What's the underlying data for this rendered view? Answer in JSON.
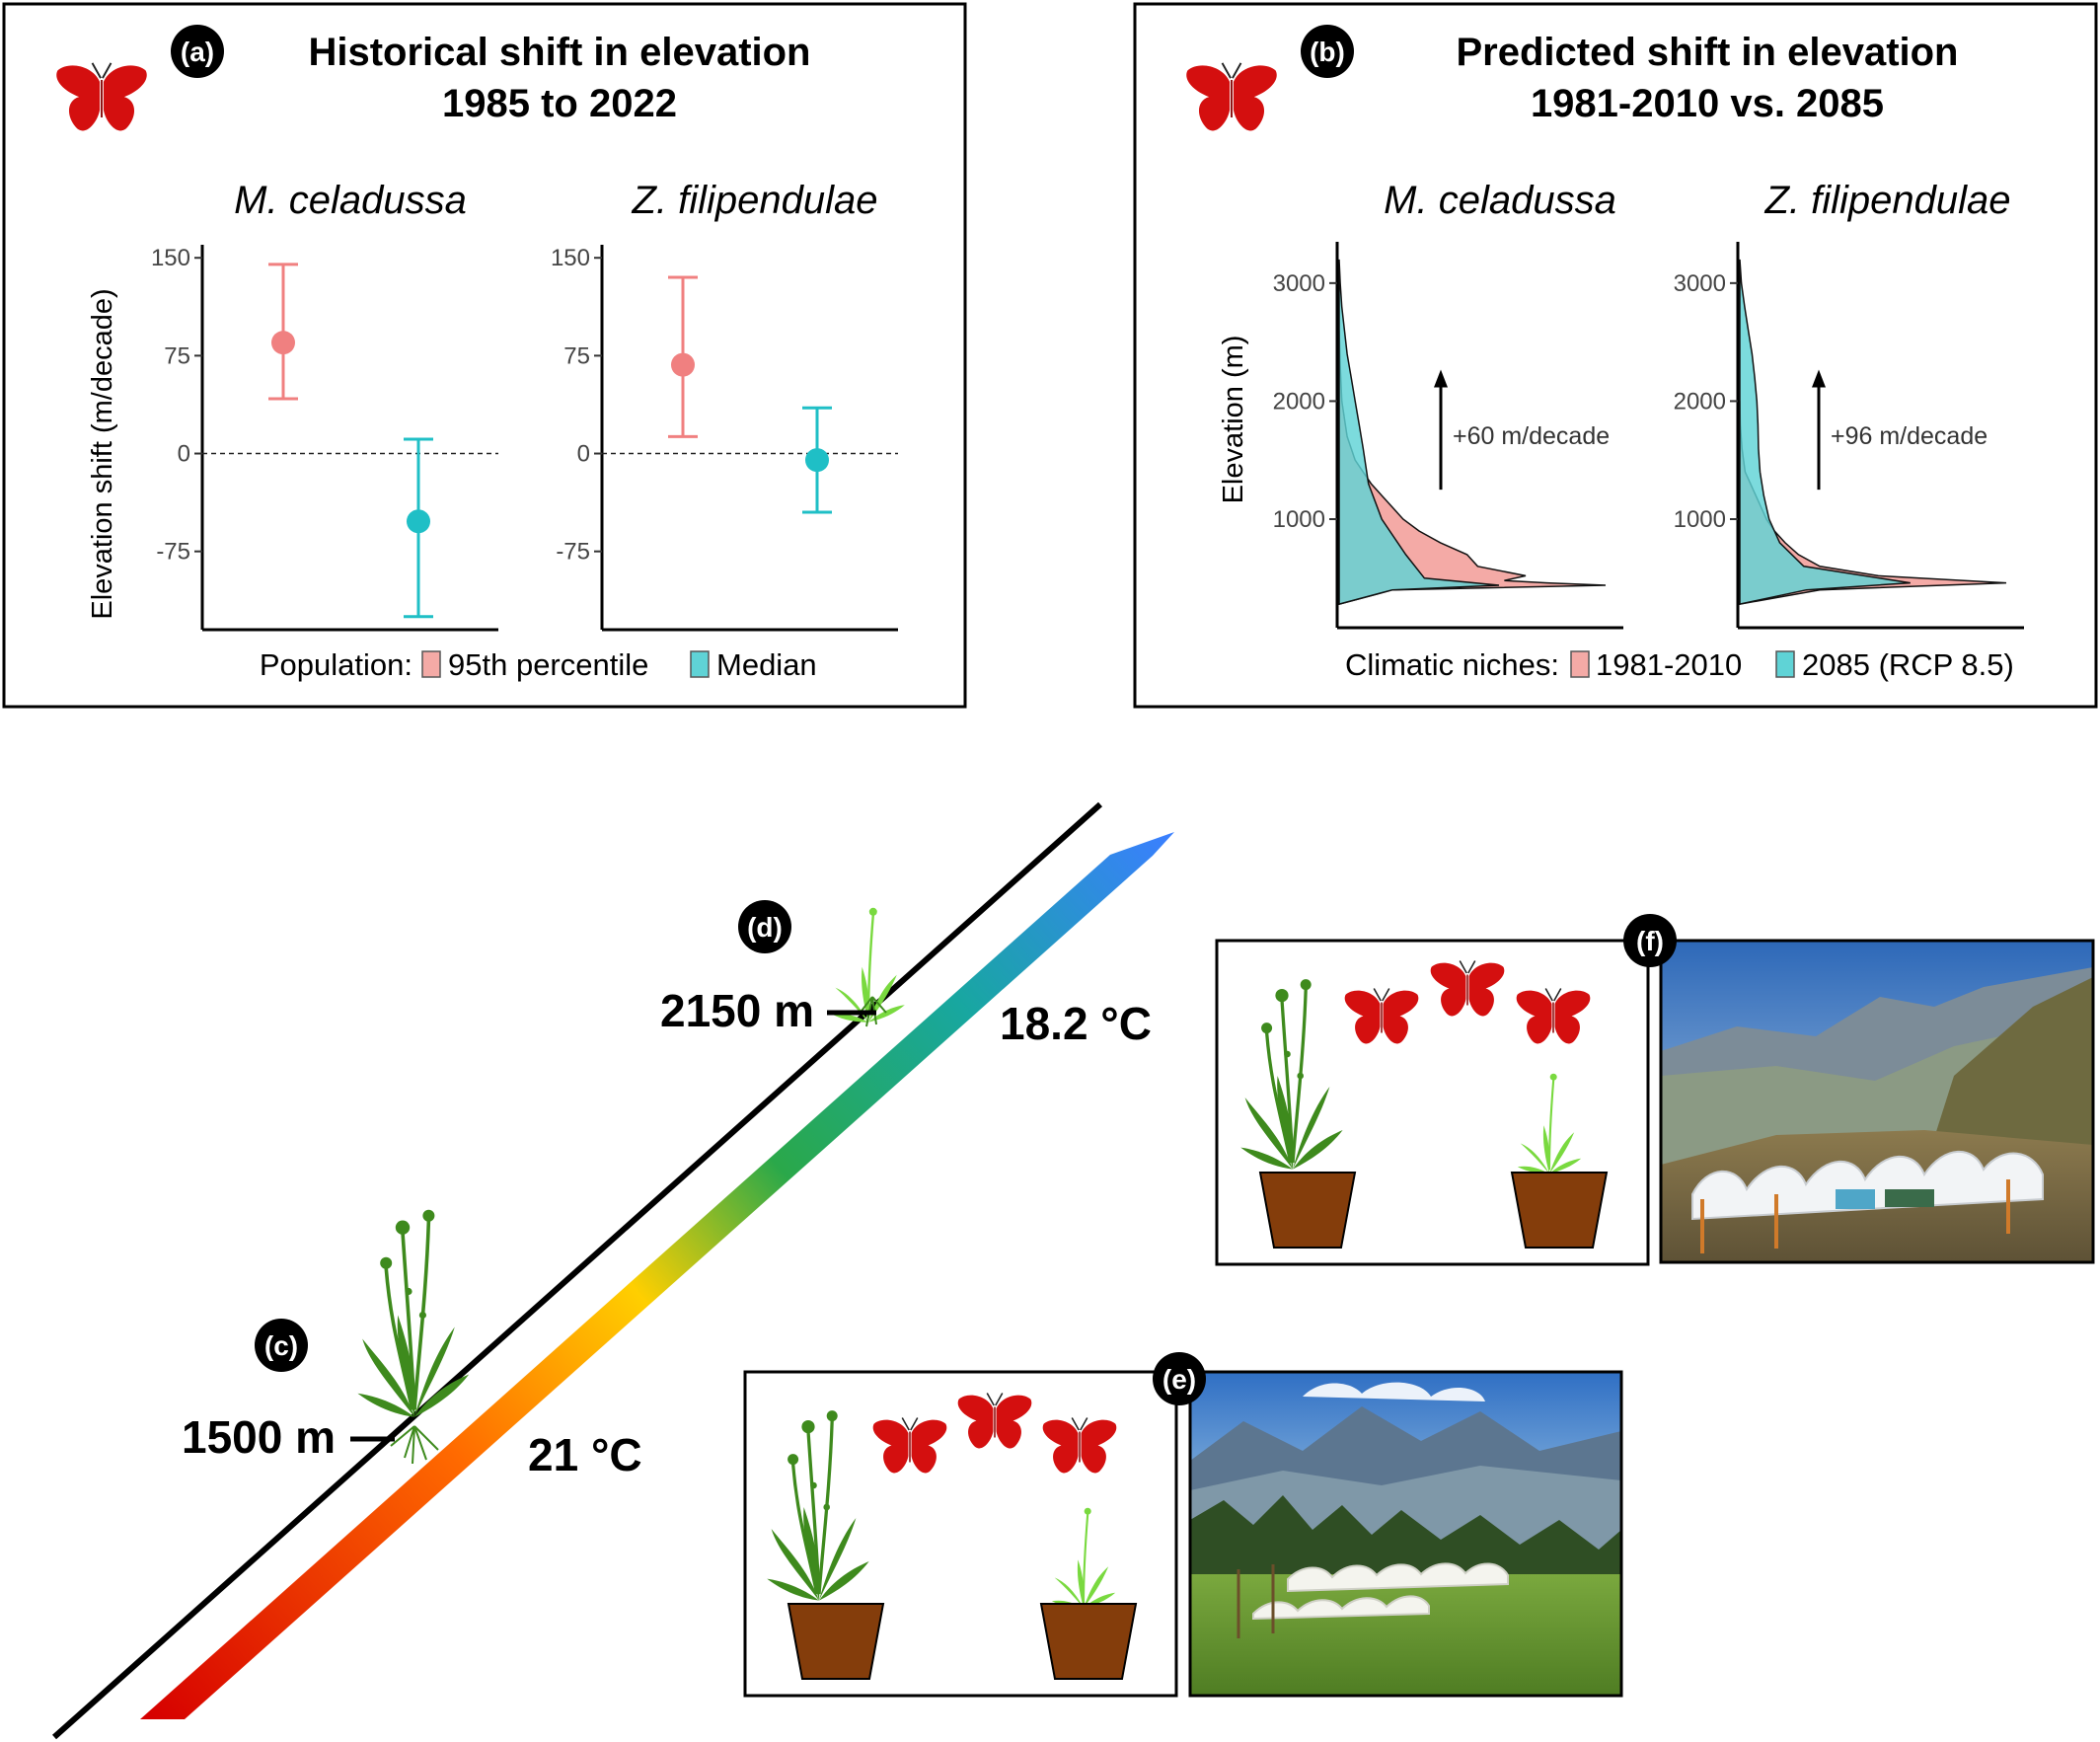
{
  "panel_a": {
    "badge": "(a)",
    "title_line1": "Historical shift in elevation",
    "title_line2": "1985 to 2022",
    "ylabel": "Elevation shift (m/decade)",
    "legend_title": "Population:",
    "legend_items": [
      "95th percentile",
      "Median"
    ]
  },
  "panel_b": {
    "badge": "(b)",
    "title_line1": "Predicted shift in elevation",
    "title_line2": "1981-2010 vs. 2085",
    "ylabel": "Elevation (m)",
    "legend_title": "Climatic niches:",
    "legend_items": [
      "1981-2010",
      "2085 (RCP 8.5)"
    ]
  },
  "colors": {
    "pink": "#f08080",
    "teal": "#1fbfc6",
    "pink_fill": "#f4aaa6",
    "teal_fill": "#5fd3d6",
    "butterfly": "#d40f0f",
    "pot": "#843d0b",
    "plant_dark": "#3e8a1d",
    "plant_light": "#79d93f"
  },
  "chart_data": [
    {
      "type": "scatter",
      "panel": "a",
      "title": "M. celadussa",
      "ylabel": "Elevation shift (m/decade)",
      "ylim": [
        -135,
        160
      ],
      "yticks": [
        -75,
        0,
        75,
        150
      ],
      "reference_line": 0,
      "series": [
        {
          "name": "95th percentile",
          "value": 85,
          "lower": 42,
          "upper": 145
        },
        {
          "name": "Median",
          "value": -52,
          "lower": -125,
          "upper": 11
        }
      ]
    },
    {
      "type": "scatter",
      "panel": "a",
      "title": "Z. filipendulae",
      "ylim": [
        -135,
        160
      ],
      "yticks": [
        -75,
        0,
        75,
        150
      ],
      "reference_line": 0,
      "series": [
        {
          "name": "95th percentile",
          "value": 68,
          "lower": 13,
          "upper": 135
        },
        {
          "name": "Median",
          "value": -5,
          "lower": -45,
          "upper": 35
        }
      ]
    },
    {
      "type": "area",
      "panel": "b",
      "title": "M. celadussa",
      "ylabel": "Elevation (m)",
      "ylim": [
        80,
        3350
      ],
      "yticks": [
        1000,
        2000,
        3000
      ],
      "annotation": "+60 m/decade",
      "series": [
        {
          "name": "1981-2010",
          "elevation": [
            280,
            400,
            440,
            460,
            480,
            520,
            600,
            700,
            800,
            900,
            1000,
            1100,
            1200,
            1300,
            1400,
            1500,
            1700,
            2000,
            2300,
            2600
          ],
          "density": [
            0,
            0.2,
            1.0,
            0.78,
            0.62,
            0.7,
            0.52,
            0.48,
            0.38,
            0.3,
            0.24,
            0.2,
            0.16,
            0.12,
            0.09,
            0.06,
            0.03,
            0.01,
            0.004,
            0
          ]
        },
        {
          "name": "2085 (RCP 8.5)",
          "elevation": [
            280,
            400,
            440,
            500,
            700,
            1000,
            1300,
            1600,
            1800,
            2000,
            2200,
            2400,
            2600,
            2800,
            3000,
            3200
          ],
          "density": [
            0,
            0.2,
            0.6,
            0.32,
            0.25,
            0.16,
            0.11,
            0.09,
            0.075,
            0.06,
            0.045,
            0.03,
            0.02,
            0.01,
            0.004,
            0
          ]
        }
      ]
    },
    {
      "type": "area",
      "panel": "b",
      "title": "Z. filipendulae",
      "ylim": [
        80,
        3350
      ],
      "yticks": [
        1000,
        2000,
        3000
      ],
      "annotation": "+96 m/decade",
      "series": [
        {
          "name": "1981-2010",
          "elevation": [
            280,
            400,
            460,
            520,
            600,
            700,
            800,
            900,
            1000,
            1100,
            1200,
            1300,
            1400,
            1600,
            1800,
            2000
          ],
          "density": [
            0,
            0.3,
            1.0,
            0.52,
            0.3,
            0.22,
            0.17,
            0.13,
            0.1,
            0.08,
            0.06,
            0.04,
            0.02,
            0.008,
            0.002,
            0
          ]
        },
        {
          "name": "2085 (RCP 8.5)",
          "elevation": [
            280,
            400,
            460,
            600,
            800,
            1000,
            1200,
            1400,
            1600,
            1800,
            2000,
            2200,
            2400,
            2600,
            2800,
            3000,
            3200
          ],
          "density": [
            0,
            0.25,
            0.64,
            0.24,
            0.15,
            0.11,
            0.09,
            0.076,
            0.07,
            0.068,
            0.064,
            0.056,
            0.046,
            0.032,
            0.018,
            0.006,
            0
          ]
        }
      ]
    }
  ],
  "transect": {
    "badge_c": "(c)",
    "badge_d": "(d)",
    "badge_e": "(e)",
    "badge_f": "(f)",
    "low_elevation": "1500 m",
    "high_elevation": "2150 m",
    "low_temp": "21 °C",
    "high_temp": "18.2 °C"
  }
}
